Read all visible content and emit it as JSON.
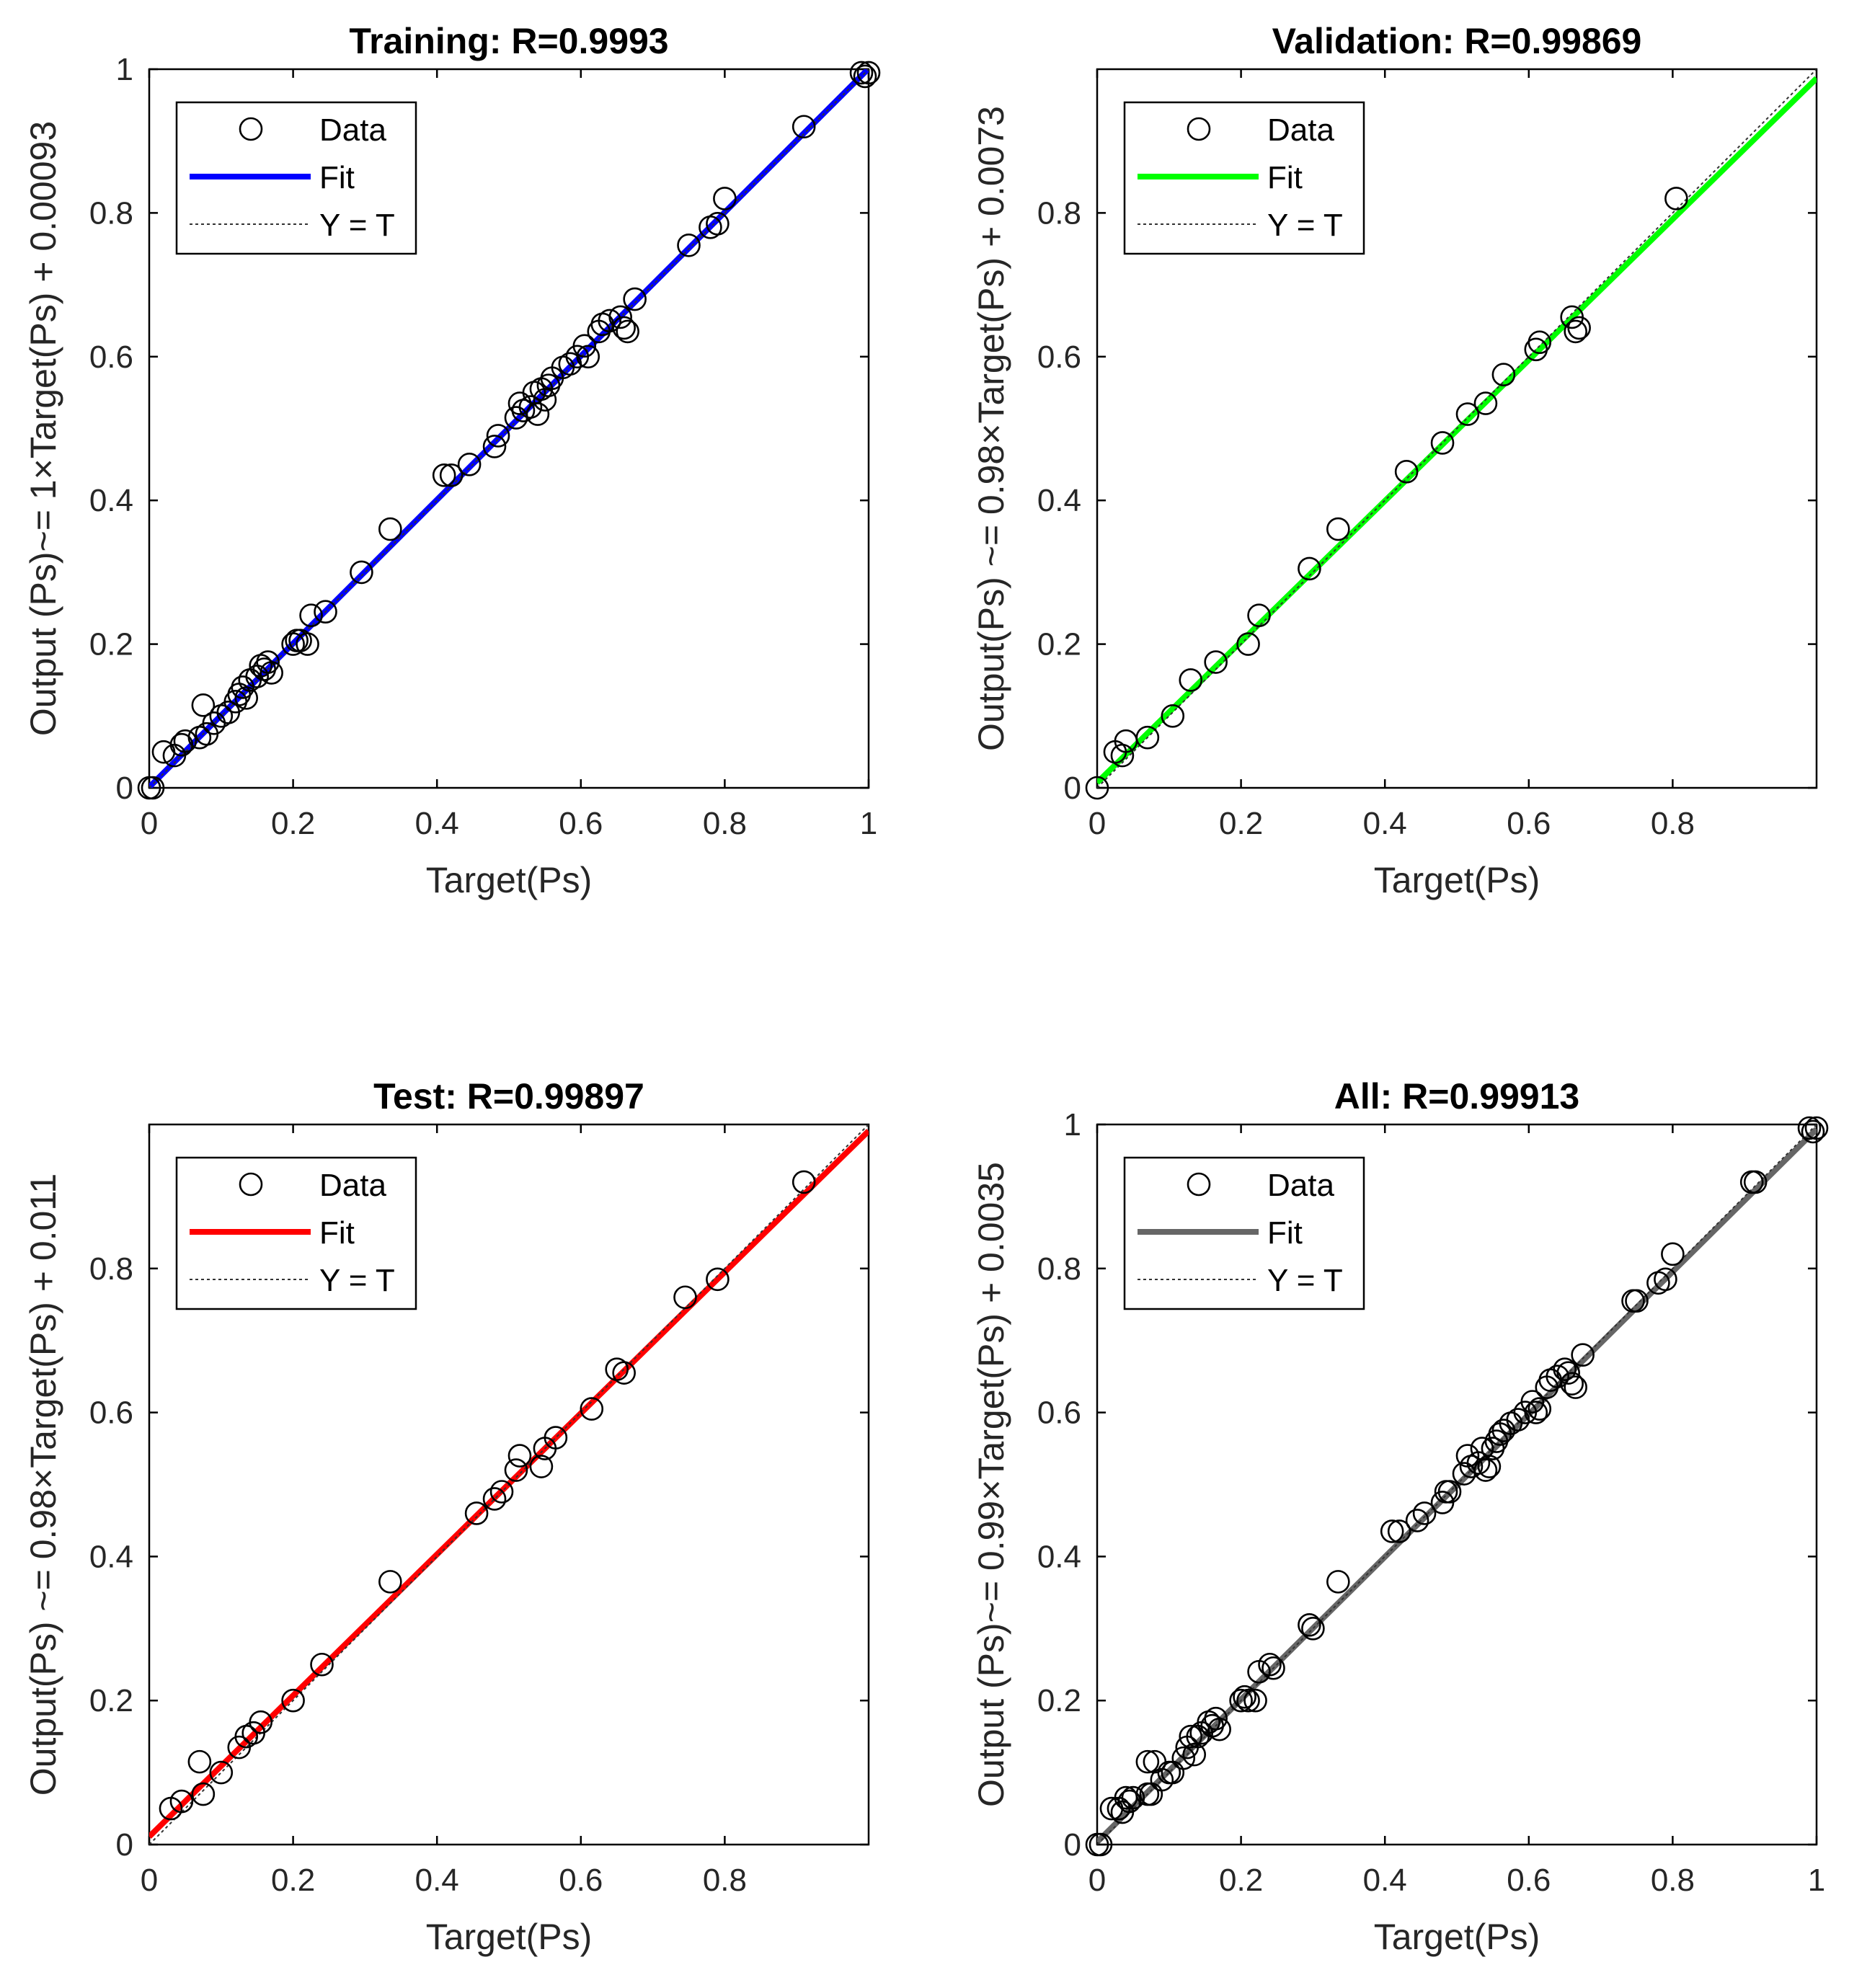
{
  "legend": {
    "data_label": "Data",
    "fit_label": "Fit",
    "yt_label": "Y = T"
  },
  "chart_data": [
    {
      "type": "scatter",
      "title": "Training: R=0.9993",
      "xlabel": "Target(Ps)",
      "ylabel": "Output (Ps)~= 1×Target(Ps) + 0.00093",
      "xlim": [
        0,
        1
      ],
      "ylim": [
        0,
        1
      ],
      "xticks": [
        "0",
        "0.2",
        "0.4",
        "0.6",
        "0.8",
        "1"
      ],
      "yticks": [
        "0",
        "0.2",
        "0.4",
        "0.6",
        "0.8",
        "1"
      ],
      "tick_values": [
        0,
        0.2,
        0.4,
        0.6,
        0.8,
        1
      ],
      "legend_position": "top-left",
      "fit_color": "#0000ff",
      "fit": {
        "slope": 1,
        "intercept": 0.00093
      },
      "points": [
        [
          0,
          0
        ],
        [
          0.005,
          0
        ],
        [
          0.02,
          0.05
        ],
        [
          0.035,
          0.045
        ],
        [
          0.045,
          0.06
        ],
        [
          0.05,
          0.065
        ],
        [
          0.07,
          0.07
        ],
        [
          0.075,
          0.115
        ],
        [
          0.08,
          0.075
        ],
        [
          0.09,
          0.09
        ],
        [
          0.1,
          0.1
        ],
        [
          0.11,
          0.105
        ],
        [
          0.12,
          0.12
        ],
        [
          0.125,
          0.13
        ],
        [
          0.13,
          0.14
        ],
        [
          0.135,
          0.125
        ],
        [
          0.14,
          0.15
        ],
        [
          0.15,
          0.155
        ],
        [
          0.155,
          0.17
        ],
        [
          0.16,
          0.165
        ],
        [
          0.165,
          0.175
        ],
        [
          0.17,
          0.16
        ],
        [
          0.2,
          0.2
        ],
        [
          0.205,
          0.205
        ],
        [
          0.21,
          0.205
        ],
        [
          0.22,
          0.2
        ],
        [
          0.225,
          0.24
        ],
        [
          0.245,
          0.245
        ],
        [
          0.295,
          0.3
        ],
        [
          0.335,
          0.36
        ],
        [
          0.41,
          0.435
        ],
        [
          0.42,
          0.435
        ],
        [
          0.445,
          0.45
        ],
        [
          0.48,
          0.475
        ],
        [
          0.485,
          0.49
        ],
        [
          0.51,
          0.515
        ],
        [
          0.515,
          0.535
        ],
        [
          0.52,
          0.525
        ],
        [
          0.53,
          0.53
        ],
        [
          0.535,
          0.55
        ],
        [
          0.54,
          0.52
        ],
        [
          0.545,
          0.555
        ],
        [
          0.55,
          0.54
        ],
        [
          0.555,
          0.56
        ],
        [
          0.56,
          0.57
        ],
        [
          0.575,
          0.585
        ],
        [
          0.585,
          0.59
        ],
        [
          0.595,
          0.6
        ],
        [
          0.605,
          0.615
        ],
        [
          0.61,
          0.6
        ],
        [
          0.625,
          0.635
        ],
        [
          0.63,
          0.645
        ],
        [
          0.64,
          0.65
        ],
        [
          0.655,
          0.655
        ],
        [
          0.66,
          0.64
        ],
        [
          0.665,
          0.635
        ],
        [
          0.675,
          0.68
        ],
        [
          0.75,
          0.755
        ],
        [
          0.78,
          0.78
        ],
        [
          0.79,
          0.785
        ],
        [
          0.8,
          0.82
        ],
        [
          0.91,
          0.92
        ],
        [
          0.99,
          0.995
        ],
        [
          0.995,
          0.99
        ],
        [
          1.0,
          0.995
        ]
      ]
    },
    {
      "type": "scatter",
      "title": "Validation: R=0.99869",
      "xlabel": "Target(Ps)",
      "ylabel": "Output(Ps) ~= 0.98×Target(Ps) + 0.0073",
      "xlim": [
        0,
        1
      ],
      "ylim": [
        0,
        1
      ],
      "xticks": [
        "0",
        "0.2",
        "0.4",
        "0.6",
        "0.8"
      ],
      "yticks": [
        "0",
        "0.2",
        "0.4",
        "0.6",
        "0.8"
      ],
      "tick_values": [
        0,
        0.2,
        0.4,
        0.6,
        0.8
      ],
      "legend_position": "top-left",
      "fit_color": "#00ff00",
      "fit": {
        "slope": 0.98,
        "intercept": 0.0073
      },
      "points": [
        [
          0,
          0
        ],
        [
          0.025,
          0.05
        ],
        [
          0.035,
          0.045
        ],
        [
          0.04,
          0.065
        ],
        [
          0.07,
          0.07
        ],
        [
          0.105,
          0.1
        ],
        [
          0.13,
          0.15
        ],
        [
          0.165,
          0.175
        ],
        [
          0.21,
          0.2
        ],
        [
          0.225,
          0.24
        ],
        [
          0.295,
          0.305
        ],
        [
          0.335,
          0.36
        ],
        [
          0.43,
          0.44
        ],
        [
          0.48,
          0.48
        ],
        [
          0.515,
          0.52
        ],
        [
          0.54,
          0.535
        ],
        [
          0.565,
          0.575
        ],
        [
          0.61,
          0.61
        ],
        [
          0.615,
          0.62
        ],
        [
          0.66,
          0.655
        ],
        [
          0.665,
          0.635
        ],
        [
          0.67,
          0.64
        ],
        [
          0.805,
          0.82
        ]
      ]
    },
    {
      "type": "scatter",
      "title": "Test: R=0.99897",
      "xlabel": "Target(Ps)",
      "ylabel": "Output(Ps) ~= 0.98×Target(Ps) + 0.011",
      "xlim": [
        0,
        1
      ],
      "ylim": [
        0,
        1
      ],
      "xticks": [
        "0",
        "0.2",
        "0.4",
        "0.6",
        "0.8"
      ],
      "yticks": [
        "0",
        "0.2",
        "0.4",
        "0.6",
        "0.8"
      ],
      "tick_values": [
        0,
        0.2,
        0.4,
        0.6,
        0.8
      ],
      "legend_position": "top-left",
      "fit_color": "#ff0000",
      "fit": {
        "slope": 0.98,
        "intercept": 0.011
      },
      "points": [
        [
          0.03,
          0.05
        ],
        [
          0.045,
          0.06
        ],
        [
          0.07,
          0.115
        ],
        [
          0.075,
          0.07
        ],
        [
          0.1,
          0.1
        ],
        [
          0.125,
          0.135
        ],
        [
          0.135,
          0.15
        ],
        [
          0.145,
          0.155
        ],
        [
          0.155,
          0.17
        ],
        [
          0.2,
          0.2
        ],
        [
          0.24,
          0.25
        ],
        [
          0.335,
          0.365
        ],
        [
          0.455,
          0.46
        ],
        [
          0.48,
          0.48
        ],
        [
          0.49,
          0.49
        ],
        [
          0.51,
          0.52
        ],
        [
          0.515,
          0.54
        ],
        [
          0.545,
          0.525
        ],
        [
          0.55,
          0.55
        ],
        [
          0.565,
          0.565
        ],
        [
          0.615,
          0.605
        ],
        [
          0.65,
          0.66
        ],
        [
          0.66,
          0.655
        ],
        [
          0.745,
          0.76
        ],
        [
          0.79,
          0.785
        ],
        [
          0.91,
          0.92
        ]
      ]
    },
    {
      "type": "scatter",
      "title": "All: R=0.99913",
      "xlabel": "Target(Ps)",
      "ylabel": "Output (Ps)~= 0.99×Target(Ps) + 0.0035",
      "xlim": [
        0,
        1
      ],
      "ylim": [
        0,
        1
      ],
      "xticks": [
        "0",
        "0.2",
        "0.4",
        "0.6",
        "0.8",
        "1"
      ],
      "yticks": [
        "0",
        "0.2",
        "0.4",
        "0.6",
        "0.8",
        "1"
      ],
      "tick_values": [
        0,
        0.2,
        0.4,
        0.6,
        0.8,
        1
      ],
      "legend_position": "top-left",
      "fit_color": "#666666",
      "fit": {
        "slope": 0.99,
        "intercept": 0.0035
      },
      "points": [
        [
          0,
          0
        ],
        [
          0.005,
          0
        ],
        [
          0.02,
          0.05
        ],
        [
          0.03,
          0.05
        ],
        [
          0.035,
          0.045
        ],
        [
          0.04,
          0.065
        ],
        [
          0.045,
          0.06
        ],
        [
          0.05,
          0.065
        ],
        [
          0.07,
          0.07
        ],
        [
          0.07,
          0.115
        ],
        [
          0.075,
          0.07
        ],
        [
          0.08,
          0.115
        ],
        [
          0.09,
          0.09
        ],
        [
          0.1,
          0.1
        ],
        [
          0.105,
          0.1
        ],
        [
          0.12,
          0.12
        ],
        [
          0.125,
          0.135
        ],
        [
          0.13,
          0.15
        ],
        [
          0.135,
          0.125
        ],
        [
          0.14,
          0.15
        ],
        [
          0.145,
          0.155
        ],
        [
          0.155,
          0.17
        ],
        [
          0.16,
          0.165
        ],
        [
          0.165,
          0.175
        ],
        [
          0.17,
          0.16
        ],
        [
          0.2,
          0.2
        ],
        [
          0.205,
          0.205
        ],
        [
          0.21,
          0.2
        ],
        [
          0.22,
          0.2
        ],
        [
          0.225,
          0.24
        ],
        [
          0.24,
          0.25
        ],
        [
          0.245,
          0.245
        ],
        [
          0.295,
          0.305
        ],
        [
          0.3,
          0.3
        ],
        [
          0.335,
          0.365
        ],
        [
          0.41,
          0.435
        ],
        [
          0.42,
          0.435
        ],
        [
          0.445,
          0.45
        ],
        [
          0.455,
          0.46
        ],
        [
          0.48,
          0.475
        ],
        [
          0.485,
          0.49
        ],
        [
          0.49,
          0.49
        ],
        [
          0.51,
          0.515
        ],
        [
          0.515,
          0.54
        ],
        [
          0.52,
          0.525
        ],
        [
          0.53,
          0.53
        ],
        [
          0.535,
          0.55
        ],
        [
          0.54,
          0.52
        ],
        [
          0.545,
          0.525
        ],
        [
          0.55,
          0.55
        ],
        [
          0.555,
          0.56
        ],
        [
          0.56,
          0.57
        ],
        [
          0.565,
          0.575
        ],
        [
          0.575,
          0.585
        ],
        [
          0.585,
          0.59
        ],
        [
          0.595,
          0.6
        ],
        [
          0.605,
          0.615
        ],
        [
          0.61,
          0.6
        ],
        [
          0.615,
          0.605
        ],
        [
          0.625,
          0.635
        ],
        [
          0.63,
          0.645
        ],
        [
          0.64,
          0.65
        ],
        [
          0.65,
          0.66
        ],
        [
          0.655,
          0.655
        ],
        [
          0.66,
          0.64
        ],
        [
          0.665,
          0.635
        ],
        [
          0.675,
          0.68
        ],
        [
          0.745,
          0.755
        ],
        [
          0.75,
          0.755
        ],
        [
          0.78,
          0.78
        ],
        [
          0.79,
          0.785
        ],
        [
          0.8,
          0.82
        ],
        [
          0.91,
          0.92
        ],
        [
          0.915,
          0.92
        ],
        [
          0.99,
          0.995
        ],
        [
          0.995,
          0.99
        ],
        [
          1.0,
          0.995
        ]
      ]
    }
  ]
}
